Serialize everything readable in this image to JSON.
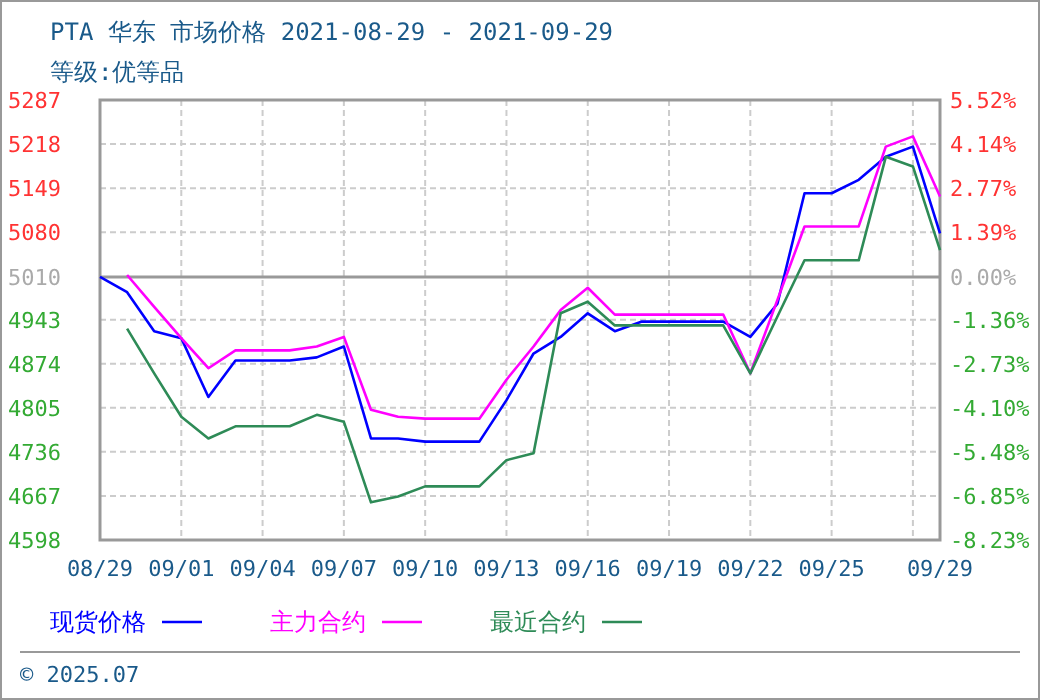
{
  "chart_data": {
    "type": "line",
    "title": "PTA 华东 市场价格 2021-08-29 - 2021-09-29",
    "subtitle": "等级:优等品",
    "annotations": [
      "© 2025.07"
    ],
    "x": [
      "2021-08-29",
      "2021-08-30",
      "2021-08-31",
      "2021-09-01",
      "2021-09-02",
      "2021-09-03",
      "2021-09-04",
      "2021-09-05",
      "2021-09-06",
      "2021-09-07",
      "2021-09-08",
      "2021-09-09",
      "2021-09-10",
      "2021-09-11",
      "2021-09-12",
      "2021-09-13",
      "2021-09-14",
      "2021-09-15",
      "2021-09-16",
      "2021-09-17",
      "2021-09-18",
      "2021-09-19",
      "2021-09-20",
      "2021-09-21",
      "2021-09-22",
      "2021-09-23",
      "2021-09-24",
      "2021-09-25",
      "2021-09-26",
      "2021-09-27",
      "2021-09-28",
      "2021-09-29"
    ],
    "series": [
      {
        "name": "现货价格",
        "color": "#0000ff",
        "values": [
          5010,
          4986,
          4925,
          4914,
          4822,
          4879,
          4879,
          4879,
          4884,
          4901,
          4757,
          4757,
          4752,
          4752,
          4752,
          4817,
          4890,
          4916,
          4953,
          4925,
          4940,
          4940,
          4940,
          4940,
          4916,
          4968,
          5141,
          5141,
          5162,
          5198,
          5214,
          5078
        ]
      },
      {
        "name": "主力合约",
        "color": "#ff00ff",
        "values": [
          null,
          5013,
          4963,
          4914,
          4867,
          4895,
          4895,
          4895,
          4901,
          4916,
          4802,
          4791,
          4788,
          4788,
          4788,
          4849,
          4901,
          4958,
          4993,
          4951,
          4951,
          4951,
          4951,
          4951,
          4859,
          4974,
          5089,
          5089,
          5089,
          5214,
          5230,
          5136
        ]
      },
      {
        "name": "最近合约",
        "color": "#2e8b57",
        "values": [
          null,
          4929,
          4859,
          4791,
          4757,
          4776,
          4776,
          4776,
          4794,
          4783,
          4657,
          4666,
          4682,
          4682,
          4682,
          4723,
          4734,
          4953,
          4971,
          4934,
          4934,
          4934,
          4934,
          4934,
          4859,
          4948,
          5036,
          5036,
          5036,
          5198,
          5183,
          5052
        ]
      }
    ],
    "xlim": [
      "2021-08-29",
      "2021-09-29"
    ],
    "xticks": [
      {
        "value": "2021-08-29",
        "label": "08/29"
      },
      {
        "value": "2021-09-01",
        "label": "09/01"
      },
      {
        "value": "2021-09-04",
        "label": "09/04"
      },
      {
        "value": "2021-09-07",
        "label": "09/07"
      },
      {
        "value": "2021-09-10",
        "label": "09/10"
      },
      {
        "value": "2021-09-13",
        "label": "09/13"
      },
      {
        "value": "2021-09-16",
        "label": "09/16"
      },
      {
        "value": "2021-09-19",
        "label": "09/19"
      },
      {
        "value": "2021-09-22",
        "label": "09/22"
      },
      {
        "value": "2021-09-25",
        "label": "09/25"
      },
      {
        "value": "2021-09-28",
        "label": null
      },
      {
        "value": "2021-09-29",
        "label": "09/29"
      }
    ],
    "ylim": [
      4598,
      5287
    ],
    "yticks": [
      4598,
      4667,
      4736,
      4805,
      4874,
      4943,
      5010,
      5080,
      5149,
      5218,
      5287
    ],
    "y2lim": [
      -8.23,
      5.52
    ],
    "y2ticks": [
      {
        "value": -8.23,
        "label": "-8.23%"
      },
      {
        "value": -6.85,
        "label": "-6.85%"
      },
      {
        "value": -5.48,
        "label": "-5.48%"
      },
      {
        "value": -4.1,
        "label": "-4.10%"
      },
      {
        "value": -2.73,
        "label": "-2.73%"
      },
      {
        "value": -1.36,
        "label": "-1.36%"
      },
      {
        "value": 0,
        "label": "0.00%"
      },
      {
        "value": 1.39,
        "label": "1.39%"
      },
      {
        "value": 2.77,
        "label": "2.77%"
      },
      {
        "value": 4.14,
        "label": "4.14%"
      },
      {
        "value": 5.52,
        "label": "5.52%"
      }
    ],
    "ref_lines": [
      {
        "axis": "y",
        "value": 5010,
        "color": "#999999"
      }
    ],
    "grid": true,
    "legend": "bottom",
    "marker": "none",
    "line_style": "solid"
  }
}
